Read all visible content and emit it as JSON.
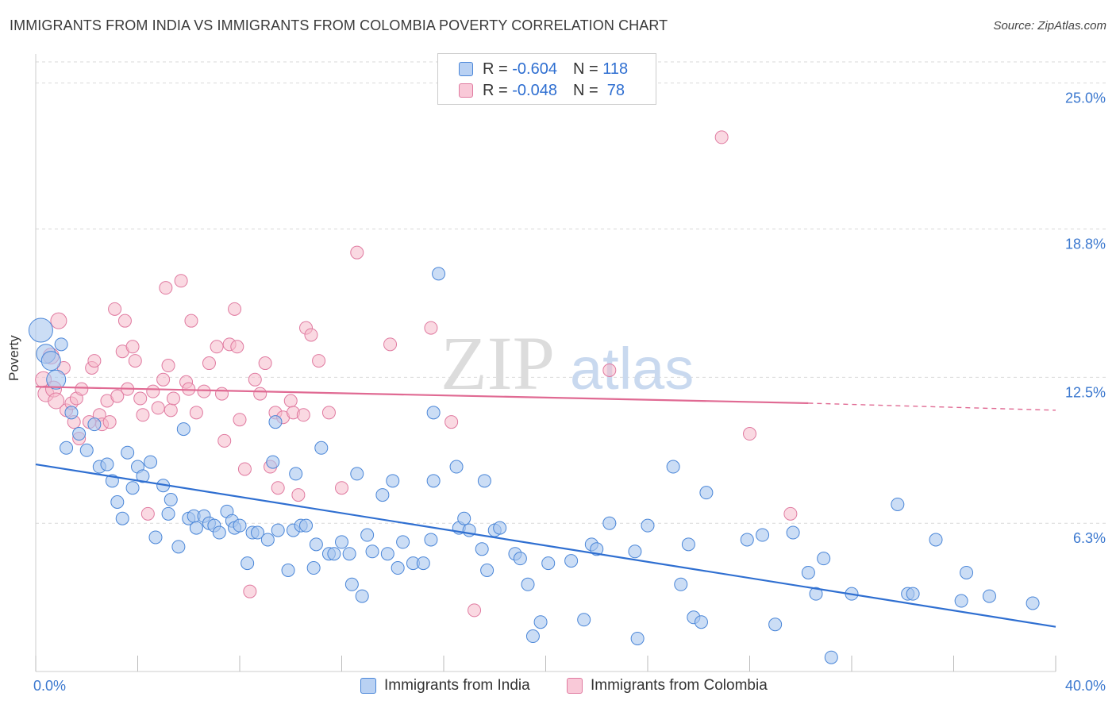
{
  "title": "IMMIGRANTS FROM INDIA VS IMMIGRANTS FROM COLOMBIA POVERTY CORRELATION CHART",
  "source": "Source: ZipAtlas.com",
  "watermark": {
    "zip": "ZIP",
    "atlas": "atlas"
  },
  "colors": {
    "india_fill": "#a9c6ef",
    "india_stroke": "#4a86d8",
    "india_line": "#2f6fd1",
    "colombia_fill": "#f6b9cb",
    "colombia_stroke": "#e07aa0",
    "colombia_line": "#e06a93",
    "tick_label": "#3b78cf",
    "grid": "#d9d9d9"
  },
  "legend": {
    "india": {
      "r_label": "R = ",
      "r_value": "-0.604",
      "n_label": "N = ",
      "n_value": "118"
    },
    "colombia": {
      "r_label": "R = ",
      "r_value": "-0.048",
      "n_label": "N = ",
      "n_value": " 78"
    }
  },
  "bottom_legend": {
    "india": "Immigrants from India",
    "colombia": "Immigrants from Colombia"
  },
  "chart_data": {
    "type": "scatter",
    "title": "IMMIGRANTS FROM INDIA VS IMMIGRANTS FROM COLOMBIA POVERTY CORRELATION CHART",
    "xlabel": "",
    "ylabel": "Poverty",
    "xlim": [
      0,
      40
    ],
    "ylim": [
      0,
      25.9
    ],
    "x_tick_labels": [
      "0.0%",
      "40.0%"
    ],
    "y_ticks": [
      6.3,
      12.5,
      18.8,
      25.0
    ],
    "y_tick_labels": [
      "6.3%",
      "12.5%",
      "18.8%",
      "25.0%"
    ],
    "grid": "horizontal dashed",
    "legend_position": "top-center",
    "series": [
      {
        "name": "Immigrants from India",
        "R": -0.604,
        "N": 118,
        "trend": {
          "x": [
            0,
            40
          ],
          "y": [
            8.8,
            1.9
          ]
        },
        "points": [
          [
            0.2,
            14.5
          ],
          [
            0.4,
            13.5
          ],
          [
            0.6,
            13.2
          ],
          [
            0.8,
            12.4
          ],
          [
            1.0,
            13.9
          ],
          [
            1.4,
            11.0
          ],
          [
            1.2,
            9.5
          ],
          [
            1.7,
            10.1
          ],
          [
            2.0,
            9.4
          ],
          [
            2.3,
            10.5
          ],
          [
            2.5,
            8.7
          ],
          [
            2.8,
            8.8
          ],
          [
            3.0,
            8.1
          ],
          [
            3.2,
            7.2
          ],
          [
            3.4,
            6.5
          ],
          [
            3.6,
            9.3
          ],
          [
            3.8,
            7.8
          ],
          [
            4.0,
            8.7
          ],
          [
            4.2,
            8.3
          ],
          [
            4.5,
            8.9
          ],
          [
            4.7,
            5.7
          ],
          [
            5.0,
            7.9
          ],
          [
            5.2,
            6.7
          ],
          [
            5.3,
            7.3
          ],
          [
            5.6,
            5.3
          ],
          [
            5.8,
            10.3
          ],
          [
            6.0,
            6.5
          ],
          [
            6.2,
            6.6
          ],
          [
            6.3,
            6.1
          ],
          [
            6.6,
            6.6
          ],
          [
            6.8,
            6.3
          ],
          [
            7.0,
            6.2
          ],
          [
            7.2,
            5.9
          ],
          [
            7.5,
            6.8
          ],
          [
            7.7,
            6.4
          ],
          [
            7.8,
            6.1
          ],
          [
            8.0,
            6.2
          ],
          [
            8.3,
            4.6
          ],
          [
            8.5,
            5.9
          ],
          [
            8.7,
            5.9
          ],
          [
            9.1,
            5.6
          ],
          [
            9.3,
            8.9
          ],
          [
            9.4,
            10.6
          ],
          [
            9.5,
            6.0
          ],
          [
            9.9,
            4.3
          ],
          [
            10.1,
            6.0
          ],
          [
            10.2,
            8.4
          ],
          [
            10.4,
            6.2
          ],
          [
            10.6,
            6.2
          ],
          [
            10.9,
            4.4
          ],
          [
            11.0,
            5.4
          ],
          [
            11.2,
            9.5
          ],
          [
            11.5,
            5.0
          ],
          [
            11.7,
            5.0
          ],
          [
            12.0,
            5.5
          ],
          [
            12.3,
            5.0
          ],
          [
            12.4,
            3.7
          ],
          [
            12.6,
            8.4
          ],
          [
            12.8,
            3.2
          ],
          [
            13.0,
            5.8
          ],
          [
            13.2,
            5.1
          ],
          [
            13.6,
            7.5
          ],
          [
            13.8,
            5.0
          ],
          [
            14.0,
            8.1
          ],
          [
            14.2,
            4.4
          ],
          [
            14.4,
            5.5
          ],
          [
            14.8,
            4.6
          ],
          [
            15.2,
            4.6
          ],
          [
            15.5,
            5.6
          ],
          [
            15.6,
            8.1
          ],
          [
            15.8,
            16.9
          ],
          [
            15.6,
            11.0
          ],
          [
            16.5,
            8.7
          ],
          [
            16.6,
            6.1
          ],
          [
            16.8,
            6.5
          ],
          [
            17.0,
            6.0
          ],
          [
            17.5,
            5.2
          ],
          [
            17.6,
            8.1
          ],
          [
            17.7,
            4.3
          ],
          [
            18.0,
            6.0
          ],
          [
            18.2,
            6.1
          ],
          [
            18.8,
            5.0
          ],
          [
            19.0,
            4.8
          ],
          [
            19.3,
            3.7
          ],
          [
            19.5,
            1.5
          ],
          [
            19.8,
            2.1
          ],
          [
            20.1,
            4.6
          ],
          [
            21.0,
            4.7
          ],
          [
            21.5,
            2.2
          ],
          [
            21.8,
            5.4
          ],
          [
            22.0,
            5.2
          ],
          [
            22.5,
            6.3
          ],
          [
            23.5,
            5.1
          ],
          [
            23.6,
            1.4
          ],
          [
            24.0,
            6.2
          ],
          [
            25.0,
            8.7
          ],
          [
            25.3,
            3.7
          ],
          [
            25.6,
            5.4
          ],
          [
            25.8,
            2.3
          ],
          [
            26.1,
            2.1
          ],
          [
            26.3,
            7.6
          ],
          [
            27.9,
            5.6
          ],
          [
            28.5,
            5.8
          ],
          [
            29.0,
            2.0
          ],
          [
            29.7,
            5.9
          ],
          [
            30.3,
            4.2
          ],
          [
            30.6,
            3.3
          ],
          [
            30.9,
            4.8
          ],
          [
            31.2,
            0.6
          ],
          [
            32.0,
            3.3
          ],
          [
            33.8,
            7.1
          ],
          [
            34.2,
            3.3
          ],
          [
            34.4,
            3.3
          ],
          [
            35.3,
            5.6
          ],
          [
            36.3,
            3.0
          ],
          [
            36.5,
            4.2
          ],
          [
            37.4,
            3.2
          ],
          [
            39.1,
            2.9
          ]
        ]
      },
      {
        "name": "Immigrants from Colombia",
        "R": -0.048,
        "N": 78,
        "trend": {
          "x": [
            0,
            30.3
          ],
          "y": [
            12.1,
            11.4
          ],
          "dashed_to": {
            "x": 40,
            "y": 11.1
          }
        },
        "points": [
          [
            0.3,
            12.4
          ],
          [
            0.4,
            11.8
          ],
          [
            0.6,
            13.4
          ],
          [
            0.7,
            12.0
          ],
          [
            0.8,
            11.5
          ],
          [
            0.9,
            14.9
          ],
          [
            1.1,
            12.9
          ],
          [
            1.2,
            11.1
          ],
          [
            1.4,
            11.4
          ],
          [
            1.5,
            10.6
          ],
          [
            1.6,
            11.6
          ],
          [
            1.7,
            9.9
          ],
          [
            1.8,
            12.0
          ],
          [
            2.1,
            10.6
          ],
          [
            2.2,
            12.9
          ],
          [
            2.3,
            13.2
          ],
          [
            2.5,
            10.9
          ],
          [
            2.6,
            10.5
          ],
          [
            2.8,
            11.5
          ],
          [
            2.9,
            10.6
          ],
          [
            3.1,
            15.4
          ],
          [
            3.2,
            11.7
          ],
          [
            3.4,
            13.6
          ],
          [
            3.5,
            14.9
          ],
          [
            3.6,
            12.0
          ],
          [
            3.8,
            13.8
          ],
          [
            3.9,
            13.2
          ],
          [
            4.1,
            11.6
          ],
          [
            4.2,
            10.9
          ],
          [
            4.4,
            6.7
          ],
          [
            4.6,
            11.9
          ],
          [
            4.8,
            11.2
          ],
          [
            5.0,
            12.4
          ],
          [
            5.1,
            16.3
          ],
          [
            5.2,
            13.0
          ],
          [
            5.3,
            11.1
          ],
          [
            5.4,
            11.6
          ],
          [
            5.7,
            16.6
          ],
          [
            5.9,
            12.3
          ],
          [
            6.0,
            12.0
          ],
          [
            6.1,
            14.9
          ],
          [
            6.3,
            11.0
          ],
          [
            6.6,
            11.9
          ],
          [
            6.8,
            13.1
          ],
          [
            7.1,
            13.8
          ],
          [
            7.3,
            11.8
          ],
          [
            7.4,
            9.8
          ],
          [
            7.6,
            13.9
          ],
          [
            7.8,
            15.4
          ],
          [
            7.9,
            13.8
          ],
          [
            8.0,
            10.7
          ],
          [
            8.2,
            8.6
          ],
          [
            8.4,
            3.4
          ],
          [
            8.6,
            12.4
          ],
          [
            8.8,
            11.8
          ],
          [
            9.0,
            13.1
          ],
          [
            9.2,
            8.7
          ],
          [
            9.4,
            11.0
          ],
          [
            9.5,
            7.8
          ],
          [
            9.7,
            10.8
          ],
          [
            10.0,
            11.5
          ],
          [
            10.1,
            11.0
          ],
          [
            10.3,
            7.5
          ],
          [
            10.5,
            10.9
          ],
          [
            10.6,
            14.6
          ],
          [
            10.8,
            14.3
          ],
          [
            11.1,
            13.2
          ],
          [
            11.5,
            11.0
          ],
          [
            12.0,
            7.8
          ],
          [
            12.6,
            17.8
          ],
          [
            13.9,
            13.9
          ],
          [
            15.5,
            14.6
          ],
          [
            16.3,
            10.6
          ],
          [
            17.2,
            2.6
          ],
          [
            22.5,
            12.8
          ],
          [
            26.9,
            22.7
          ],
          [
            28.0,
            10.1
          ],
          [
            29.6,
            6.7
          ]
        ]
      }
    ]
  }
}
